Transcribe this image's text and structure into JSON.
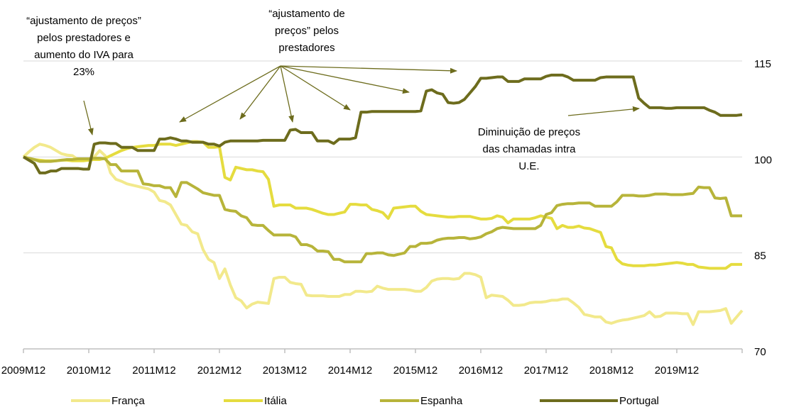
{
  "chart_data": {
    "type": "line",
    "categories": [
      "2009M12",
      null,
      null,
      null,
      null,
      null,
      null,
      null,
      null,
      null,
      null,
      null,
      "2010M12",
      null,
      null,
      null,
      null,
      null,
      null,
      null,
      null,
      null,
      null,
      null,
      "2011M12",
      null,
      null,
      null,
      null,
      null,
      null,
      null,
      null,
      null,
      null,
      null,
      "2012M12",
      null,
      null,
      null,
      null,
      null,
      null,
      null,
      null,
      null,
      null,
      null,
      "2013M12",
      null,
      null,
      null,
      null,
      null,
      null,
      null,
      null,
      null,
      null,
      null,
      "2014M12",
      null,
      null,
      null,
      null,
      null,
      null,
      null,
      null,
      null,
      null,
      null,
      "2015M12",
      null,
      null,
      null,
      null,
      null,
      null,
      null,
      null,
      null,
      null,
      null,
      "2016M12",
      null,
      null,
      null,
      null,
      null,
      null,
      null,
      null,
      null,
      null,
      null,
      "2017M12",
      null,
      null,
      null,
      null,
      null,
      null,
      null,
      null,
      null,
      null,
      null,
      "2018M12",
      null,
      null,
      null,
      null,
      null,
      null,
      null,
      null,
      null,
      null,
      null,
      "2019M12",
      null,
      null,
      null,
      null,
      null,
      null,
      null,
      null,
      null,
      null,
      null,
      null
    ],
    "series": [
      {
        "name": "França",
        "color": "#f2e98c",
        "values": [
          100,
          100.8,
          101.5,
          102,
          101.8,
          101.5,
          101,
          100.5,
          100.3,
          100.2,
          99.6,
          99.5,
          99.5,
          100,
          101,
          100.2,
          97.5,
          96.5,
          96.2,
          95.8,
          95.6,
          95.4,
          95.2,
          95,
          94.5,
          93.2,
          93,
          92.5,
          91,
          89.5,
          89.3,
          88.3,
          88,
          85.5,
          84,
          83.5,
          81,
          82.5,
          80,
          78,
          77.5,
          76.4,
          77,
          77.3,
          77.2,
          77.1,
          81,
          81.2,
          81.2,
          80.4,
          80.2,
          80.1,
          78.4,
          78.3,
          78.3,
          78.3,
          78.2,
          78.2,
          78.2,
          78.5,
          78.5,
          79,
          79,
          78.9,
          79,
          79.8,
          79.5,
          79.3,
          79.3,
          79.3,
          79.3,
          79.2,
          79,
          79,
          79.6,
          80.6,
          80.9,
          81,
          81,
          80.9,
          81,
          81.8,
          81.8,
          81.6,
          81.2,
          78,
          78.4,
          78.3,
          78.2,
          77.6,
          76.8,
          76.8,
          76.9,
          77.2,
          77.3,
          77.3,
          77.4,
          77.6,
          77.6,
          77.8,
          77.8,
          77.2,
          76.5,
          75.4,
          75.2,
          75,
          75,
          74.2,
          74,
          74.3,
          74.5,
          74.6,
          74.8,
          75,
          75.2,
          75.8,
          75,
          75.1,
          75.6,
          75.6,
          75.6,
          75.5,
          75.5,
          73.8,
          75.8,
          75.8,
          75.8,
          75.9,
          76,
          76.3,
          74,
          75,
          76
        ]
      },
      {
        "name": "Itália",
        "color": "#e5dc3f",
        "values": [
          100,
          99.8,
          99.6,
          99.5,
          99.4,
          99.4,
          99.4,
          99.5,
          99.5,
          99.4,
          99.4,
          99.4,
          99.5,
          99.6,
          99.6,
          99.8,
          100.2,
          100.6,
          101,
          101.3,
          101.5,
          101.6,
          101.7,
          101.8,
          101.8,
          102,
          102,
          102,
          101.8,
          102,
          102.2,
          102.4,
          102.4,
          102.3,
          101.5,
          101.5,
          101.6,
          96.8,
          96.4,
          98.4,
          98.2,
          98,
          98,
          97.8,
          97.7,
          96.5,
          92.3,
          92.5,
          92.5,
          92.5,
          92,
          92,
          92,
          91.8,
          91.5,
          91.2,
          91,
          91,
          91.2,
          91.4,
          92.6,
          92.6,
          92.5,
          92.5,
          91.8,
          91.6,
          91.3,
          90.4,
          92,
          92.1,
          92.2,
          92.3,
          92.3,
          91.5,
          91,
          90.9,
          90.8,
          90.7,
          90.6,
          90.6,
          90.7,
          90.7,
          90.7,
          90.5,
          90.3,
          90.3,
          90.4,
          90.8,
          90.6,
          89.7,
          90.3,
          90.3,
          90.3,
          90.3,
          90.5,
          90.8,
          90.6,
          90.4,
          88.8,
          89.3,
          89,
          89,
          89.2,
          88.9,
          88.8,
          88.5,
          88.2,
          86,
          85.8,
          84,
          83.3,
          83.1,
          83,
          83,
          83,
          83.1,
          83.1,
          83.2,
          83.3,
          83.4,
          83.5,
          83.4,
          83.2,
          83.2,
          82.8,
          82.7,
          82.6,
          82.6,
          82.6,
          82.6,
          83.2,
          83.2,
          83.2
        ]
      },
      {
        "name": "Espanha",
        "color": "#b7b43a",
        "values": [
          100,
          99.8,
          99.6,
          99.3,
          99.3,
          99.3,
          99.4,
          99.5,
          99.6,
          99.6,
          99.7,
          99.7,
          99.7,
          99.8,
          99.8,
          99.7,
          98.8,
          98.8,
          97.8,
          97.8,
          97.8,
          97.8,
          95.8,
          95.7,
          95.5,
          95.5,
          95.2,
          95.2,
          93.8,
          96,
          96,
          95.5,
          95,
          94.4,
          94.2,
          94,
          94,
          91.8,
          91.6,
          91.5,
          90.8,
          90.5,
          89.4,
          89.3,
          89.3,
          88.5,
          87.8,
          87.8,
          87.8,
          87.8,
          87.5,
          86.3,
          86.3,
          86,
          85.3,
          85.3,
          85.2,
          84,
          84,
          83.6,
          83.6,
          83.6,
          83.6,
          84.9,
          84.9,
          85,
          85,
          84.7,
          84.6,
          84.8,
          85,
          86,
          86,
          86.5,
          86.5,
          86.6,
          87,
          87.2,
          87.3,
          87.3,
          87.4,
          87.4,
          87.2,
          87.3,
          87.5,
          88,
          88.3,
          88.8,
          89,
          88.9,
          88.8,
          88.8,
          88.8,
          88.8,
          88.8,
          89.3,
          91,
          91.3,
          92.4,
          92.6,
          92.7,
          92.7,
          92.8,
          92.8,
          92.8,
          92.3,
          92.3,
          92.3,
          92.3,
          93,
          94,
          94,
          94,
          93.9,
          93.9,
          94,
          94.2,
          94.2,
          94.2,
          94.1,
          94.1,
          94.1,
          94.2,
          94.3,
          95.3,
          95.2,
          95.2,
          93.6,
          93.5,
          93.6,
          90.8,
          90.8,
          90.8
        ]
      },
      {
        "name": "Portugal",
        "color": "#6d6c1d",
        "values": [
          100,
          99.5,
          99,
          97.5,
          97.5,
          97.8,
          97.8,
          98.2,
          98.2,
          98.2,
          98.2,
          98.1,
          98.1,
          102,
          102.2,
          102.2,
          102.1,
          102.1,
          101.5,
          101.5,
          101.5,
          101,
          101,
          101,
          101,
          102.8,
          102.8,
          103,
          102.8,
          102.5,
          102.5,
          102.3,
          102.3,
          102.3,
          102,
          102,
          101.7,
          102.3,
          102.5,
          102.5,
          102.5,
          102.5,
          102.5,
          102.5,
          102.6,
          102.6,
          102.6,
          102.6,
          102.6,
          104.2,
          104.3,
          103.8,
          103.8,
          103.8,
          102.5,
          102.5,
          102.5,
          102.1,
          102.8,
          102.8,
          102.8,
          103,
          107,
          107,
          107.1,
          107.1,
          107.1,
          107.1,
          107.1,
          107.1,
          107.1,
          107.1,
          107.1,
          107.2,
          110.3,
          110.5,
          110,
          109.8,
          108.5,
          108.4,
          108.5,
          109,
          110,
          111,
          112.3,
          112.3,
          112.4,
          112.5,
          112.5,
          111.8,
          111.8,
          111.8,
          112.2,
          112.2,
          112.2,
          112.2,
          112.6,
          112.8,
          112.8,
          112.8,
          112.5,
          112,
          112,
          112,
          112,
          112,
          112.4,
          112.5,
          112.5,
          112.5,
          112.5,
          112.5,
          112.5,
          109.2,
          108.4,
          107.7,
          107.7,
          107.7,
          107.6,
          107.6,
          107.7,
          107.7,
          107.7,
          107.7,
          107.7,
          107.7,
          107.3,
          107,
          106.5,
          106.5,
          106.5,
          106.5,
          106.6
        ]
      }
    ],
    "ylim": [
      70,
      115
    ],
    "yticks": [
      70,
      85,
      100,
      115
    ],
    "grid": true,
    "annotations": [
      {
        "lines": [
          "“ajustamento de preços”",
          "pelos prestadores e",
          "aumento do IVA para",
          "23%"
        ]
      },
      {
        "lines": [
          "“ajustamento de",
          "preços” pelos",
          "prestadores"
        ]
      },
      {
        "lines": [
          "Diminuição de preços",
          "das chamadas intra",
          "U.E."
        ]
      }
    ]
  }
}
